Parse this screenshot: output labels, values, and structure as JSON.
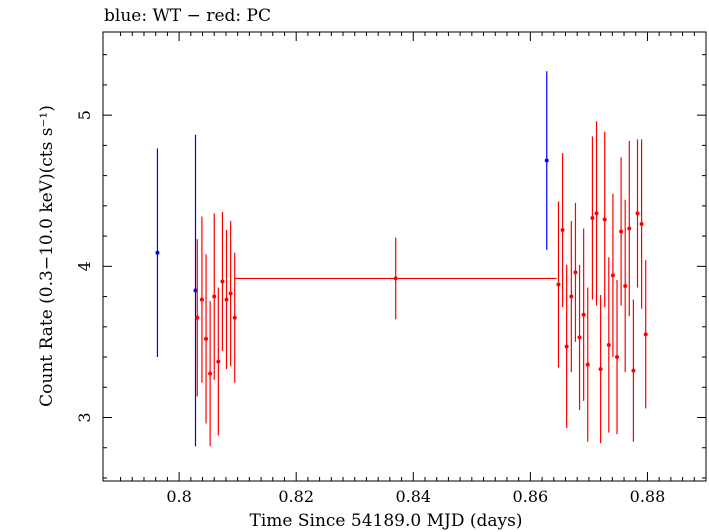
{
  "chart_data": {
    "type": "scatter",
    "title": "blue: WT − red: PC",
    "xlabel": "Time Since 54189.0 MJD (days)",
    "ylabel": "Count Rate (0.3−10.0 keV)(cts s⁻¹)",
    "xlim": [
      0.787,
      0.89
    ],
    "ylim": [
      2.58,
      5.55
    ],
    "x_ticks": [
      0.8,
      0.82,
      0.84,
      0.86,
      0.88
    ],
    "x_tick_labels": [
      "0.8",
      "0.82",
      "0.84",
      "0.86",
      "0.88"
    ],
    "y_ticks": [
      3,
      4,
      5
    ],
    "y_tick_labels": [
      "3",
      "4",
      "5"
    ],
    "grid": false,
    "series": [
      {
        "name": "WT",
        "color": "#0000ff",
        "points": [
          {
            "x": 0.7963,
            "y": 4.09,
            "yerr": 0.69,
            "xerr": 0.0
          },
          {
            "x": 0.8028,
            "y": 3.84,
            "yerr": 1.03,
            "xerr": 0.0
          },
          {
            "x": 0.8628,
            "y": 4.7,
            "yerr": 0.59,
            "xerr": 0.0
          }
        ]
      },
      {
        "name": "PC",
        "color": "#ff0000",
        "points": [
          {
            "x": 0.8031,
            "y": 3.66,
            "yerr": 0.52,
            "xerr": 0.0002
          },
          {
            "x": 0.8039,
            "y": 3.78,
            "yerr": 0.55,
            "xerr": 0.0002
          },
          {
            "x": 0.8046,
            "y": 3.52,
            "yerr": 0.56,
            "xerr": 0.0002
          },
          {
            "x": 0.8053,
            "y": 3.29,
            "yerr": 0.48,
            "xerr": 0.0002
          },
          {
            "x": 0.806,
            "y": 3.8,
            "yerr": 0.55,
            "xerr": 0.0002
          },
          {
            "x": 0.8067,
            "y": 3.37,
            "yerr": 0.49,
            "xerr": 0.0002
          },
          {
            "x": 0.8074,
            "y": 3.9,
            "yerr": 0.46,
            "xerr": 0.0002
          },
          {
            "x": 0.8081,
            "y": 3.78,
            "yerr": 0.46,
            "xerr": 0.0002
          },
          {
            "x": 0.8088,
            "y": 3.82,
            "yerr": 0.48,
            "xerr": 0.0002
          },
          {
            "x": 0.8095,
            "y": 3.66,
            "yerr": 0.43,
            "xerr": 0.0002
          },
          {
            "x": 0.837,
            "y": 3.92,
            "yerr": 0.27,
            "xerr": 0.0275
          },
          {
            "x": 0.8648,
            "y": 3.88,
            "yerr": 0.55,
            "xerr": 0.0002
          },
          {
            "x": 0.8655,
            "y": 4.24,
            "yerr": 0.51,
            "xerr": 0.0002
          },
          {
            "x": 0.8662,
            "y": 3.47,
            "yerr": 0.54,
            "xerr": 0.0002
          },
          {
            "x": 0.867,
            "y": 3.8,
            "yerr": 0.5,
            "xerr": 0.0002
          },
          {
            "x": 0.8677,
            "y": 3.96,
            "yerr": 0.46,
            "xerr": 0.0002
          },
          {
            "x": 0.8684,
            "y": 3.53,
            "yerr": 0.48,
            "xerr": 0.0002
          },
          {
            "x": 0.8691,
            "y": 3.68,
            "yerr": 0.57,
            "xerr": 0.0002
          },
          {
            "x": 0.8698,
            "y": 3.35,
            "yerr": 0.51,
            "xerr": 0.0002
          },
          {
            "x": 0.8706,
            "y": 4.32,
            "yerr": 0.54,
            "xerr": 0.0002
          },
          {
            "x": 0.8713,
            "y": 4.35,
            "yerr": 0.61,
            "xerr": 0.0002
          },
          {
            "x": 0.872,
            "y": 3.32,
            "yerr": 0.49,
            "xerr": 0.0002
          },
          {
            "x": 0.8727,
            "y": 4.31,
            "yerr": 0.58,
            "xerr": 0.0002
          },
          {
            "x": 0.8734,
            "y": 3.48,
            "yerr": 0.58,
            "xerr": 0.0002
          },
          {
            "x": 0.8741,
            "y": 3.94,
            "yerr": 0.54,
            "xerr": 0.0002
          },
          {
            "x": 0.8748,
            "y": 3.4,
            "yerr": 0.51,
            "xerr": 0.0002
          },
          {
            "x": 0.8755,
            "y": 4.23,
            "yerr": 0.49,
            "xerr": 0.0002
          },
          {
            "x": 0.8762,
            "y": 3.87,
            "yerr": 0.57,
            "xerr": 0.0002
          },
          {
            "x": 0.8769,
            "y": 4.25,
            "yerr": 0.58,
            "xerr": 0.0002
          },
          {
            "x": 0.8776,
            "y": 3.31,
            "yerr": 0.47,
            "xerr": 0.0002
          },
          {
            "x": 0.8783,
            "y": 4.35,
            "yerr": 0.49,
            "xerr": 0.0002
          },
          {
            "x": 0.879,
            "y": 4.28,
            "yerr": 0.56,
            "xerr": 0.0002
          },
          {
            "x": 0.8797,
            "y": 3.55,
            "yerr": 0.49,
            "xerr": 0.0002
          }
        ]
      }
    ]
  }
}
